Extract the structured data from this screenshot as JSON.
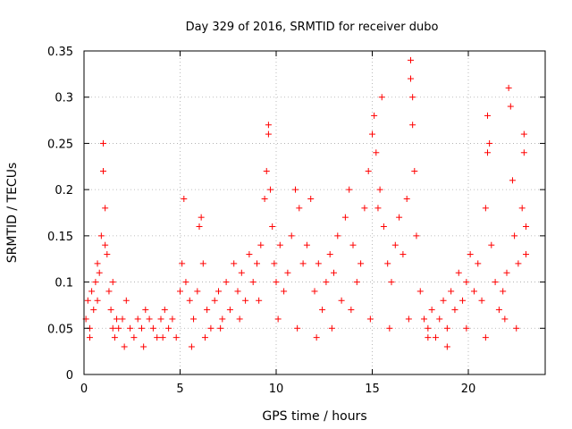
{
  "chart_data": {
    "type": "scatter",
    "title": "Day 329 of 2016, SRMTID for receiver dubo",
    "xlabel": "GPS time / hours",
    "ylabel": "SRMTID / TECUs",
    "xlim": [
      0,
      24
    ],
    "ylim": [
      0,
      0.35
    ],
    "x_ticks": [
      0,
      5,
      10,
      15,
      20
    ],
    "x_tick_labels": [
      "0",
      "5",
      "10",
      "15",
      "20"
    ],
    "y_ticks": [
      0,
      0.05,
      0.1,
      0.15,
      0.2,
      0.25,
      0.3,
      0.35
    ],
    "y_tick_labels": [
      "0",
      "0.05",
      "0.1",
      "0.15",
      "0.2",
      "0.25",
      "0.3",
      "0.35"
    ],
    "grid": true,
    "marker": "+",
    "color": "#ff0000",
    "series": [
      {
        "name": "SRMTID",
        "points": [
          [
            0.1,
            0.06
          ],
          [
            0.2,
            0.08
          ],
          [
            0.3,
            0.05
          ],
          [
            0.4,
            0.09
          ],
          [
            0.5,
            0.07
          ],
          [
            0.6,
            0.1
          ],
          [
            0.7,
            0.12
          ],
          [
            0.8,
            0.11
          ],
          [
            0.9,
            0.15
          ],
          [
            1.0,
            0.25
          ],
          [
            1.0,
            0.22
          ],
          [
            1.1,
            0.18
          ],
          [
            1.1,
            0.14
          ],
          [
            1.2,
            0.13
          ],
          [
            1.3,
            0.09
          ],
          [
            1.4,
            0.07
          ],
          [
            1.5,
            0.05
          ],
          [
            1.6,
            0.04
          ],
          [
            1.7,
            0.06
          ],
          [
            1.8,
            0.05
          ],
          [
            2.0,
            0.06
          ],
          [
            2.2,
            0.08
          ],
          [
            2.4,
            0.05
          ],
          [
            2.6,
            0.04
          ],
          [
            2.8,
            0.06
          ],
          [
            3.0,
            0.05
          ],
          [
            3.2,
            0.07
          ],
          [
            3.4,
            0.06
          ],
          [
            3.6,
            0.05
          ],
          [
            3.8,
            0.04
          ],
          [
            4.0,
            0.06
          ],
          [
            4.2,
            0.07
          ],
          [
            4.4,
            0.05
          ],
          [
            4.6,
            0.06
          ],
          [
            4.8,
            0.04
          ],
          [
            5.0,
            0.09
          ],
          [
            5.1,
            0.12
          ],
          [
            5.2,
            0.19
          ],
          [
            5.3,
            0.1
          ],
          [
            5.5,
            0.08
          ],
          [
            5.7,
            0.06
          ],
          [
            5.9,
            0.09
          ],
          [
            6.0,
            0.16
          ],
          [
            6.1,
            0.17
          ],
          [
            6.2,
            0.12
          ],
          [
            6.4,
            0.07
          ],
          [
            6.6,
            0.05
          ],
          [
            6.8,
            0.08
          ],
          [
            7.0,
            0.09
          ],
          [
            7.2,
            0.06
          ],
          [
            7.4,
            0.1
          ],
          [
            7.6,
            0.07
          ],
          [
            7.8,
            0.12
          ],
          [
            8.0,
            0.09
          ],
          [
            8.2,
            0.11
          ],
          [
            8.4,
            0.08
          ],
          [
            8.6,
            0.13
          ],
          [
            8.8,
            0.1
          ],
          [
            9.0,
            0.12
          ],
          [
            9.2,
            0.14
          ],
          [
            9.4,
            0.19
          ],
          [
            9.5,
            0.22
          ],
          [
            9.6,
            0.26
          ],
          [
            9.6,
            0.27
          ],
          [
            9.7,
            0.2
          ],
          [
            9.8,
            0.16
          ],
          [
            9.9,
            0.12
          ],
          [
            10.0,
            0.1
          ],
          [
            10.2,
            0.14
          ],
          [
            10.4,
            0.09
          ],
          [
            10.6,
            0.11
          ],
          [
            10.8,
            0.15
          ],
          [
            11.0,
            0.2
          ],
          [
            11.2,
            0.18
          ],
          [
            11.4,
            0.12
          ],
          [
            11.6,
            0.14
          ],
          [
            11.8,
            0.19
          ],
          [
            12.0,
            0.09
          ],
          [
            12.2,
            0.12
          ],
          [
            12.4,
            0.07
          ],
          [
            12.6,
            0.1
          ],
          [
            12.8,
            0.13
          ],
          [
            13.0,
            0.11
          ],
          [
            13.2,
            0.15
          ],
          [
            13.4,
            0.08
          ],
          [
            13.6,
            0.17
          ],
          [
            13.8,
            0.2
          ],
          [
            14.0,
            0.14
          ],
          [
            14.2,
            0.1
          ],
          [
            14.4,
            0.12
          ],
          [
            14.6,
            0.18
          ],
          [
            14.8,
            0.22
          ],
          [
            15.0,
            0.26
          ],
          [
            15.1,
            0.28
          ],
          [
            15.2,
            0.24
          ],
          [
            15.3,
            0.18
          ],
          [
            15.4,
            0.2
          ],
          [
            15.5,
            0.3
          ],
          [
            15.6,
            0.16
          ],
          [
            15.8,
            0.12
          ],
          [
            16.0,
            0.1
          ],
          [
            16.2,
            0.14
          ],
          [
            16.4,
            0.17
          ],
          [
            16.6,
            0.13
          ],
          [
            16.8,
            0.19
          ],
          [
            17.0,
            0.34
          ],
          [
            17.0,
            0.32
          ],
          [
            17.1,
            0.3
          ],
          [
            17.1,
            0.27
          ],
          [
            17.2,
            0.22
          ],
          [
            17.3,
            0.15
          ],
          [
            17.5,
            0.09
          ],
          [
            17.7,
            0.06
          ],
          [
            17.9,
            0.05
          ],
          [
            18.1,
            0.07
          ],
          [
            18.3,
            0.04
          ],
          [
            18.5,
            0.06
          ],
          [
            18.7,
            0.08
          ],
          [
            18.9,
            0.05
          ],
          [
            19.1,
            0.09
          ],
          [
            19.3,
            0.07
          ],
          [
            19.5,
            0.11
          ],
          [
            19.7,
            0.08
          ],
          [
            19.9,
            0.1
          ],
          [
            20.1,
            0.13
          ],
          [
            20.3,
            0.09
          ],
          [
            20.5,
            0.12
          ],
          [
            20.7,
            0.08
          ],
          [
            20.9,
            0.18
          ],
          [
            21.0,
            0.24
          ],
          [
            21.0,
            0.28
          ],
          [
            21.1,
            0.25
          ],
          [
            21.2,
            0.14
          ],
          [
            21.4,
            0.1
          ],
          [
            21.6,
            0.07
          ],
          [
            21.8,
            0.09
          ],
          [
            22.0,
            0.11
          ],
          [
            22.1,
            0.31
          ],
          [
            22.2,
            0.29
          ],
          [
            22.3,
            0.21
          ],
          [
            22.4,
            0.15
          ],
          [
            22.6,
            0.12
          ],
          [
            22.8,
            0.18
          ],
          [
            22.9,
            0.26
          ],
          [
            22.9,
            0.24
          ],
          [
            23.0,
            0.16
          ],
          [
            23.0,
            0.13
          ],
          [
            0.3,
            0.04
          ],
          [
            0.7,
            0.08
          ],
          [
            1.5,
            0.1
          ],
          [
            2.1,
            0.03
          ],
          [
            3.1,
            0.03
          ],
          [
            4.1,
            0.04
          ],
          [
            5.6,
            0.03
          ],
          [
            6.3,
            0.04
          ],
          [
            7.1,
            0.05
          ],
          [
            8.1,
            0.06
          ],
          [
            9.1,
            0.08
          ],
          [
            10.1,
            0.06
          ],
          [
            11.1,
            0.05
          ],
          [
            12.1,
            0.04
          ],
          [
            12.9,
            0.05
          ],
          [
            13.9,
            0.07
          ],
          [
            14.9,
            0.06
          ],
          [
            15.9,
            0.05
          ],
          [
            16.9,
            0.06
          ],
          [
            17.9,
            0.04
          ],
          [
            18.9,
            0.03
          ],
          [
            19.9,
            0.05
          ],
          [
            20.9,
            0.04
          ],
          [
            21.9,
            0.06
          ],
          [
            22.5,
            0.05
          ]
        ]
      }
    ]
  }
}
